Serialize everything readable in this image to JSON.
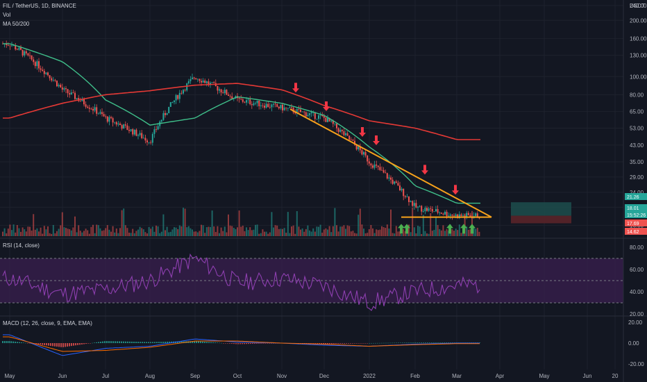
{
  "colors": {
    "background": "#131722",
    "grid": "#1e222d",
    "up": "#26a69a",
    "down": "#ef5350",
    "ma50": "#3fbf8a",
    "ma200": "#e53935",
    "trendline": "#f7a21b",
    "arrow_down": "#f23645",
    "arrow_up": "#4caf50",
    "rsi_line": "#8e3fb0",
    "rsi_band": "#3a1f4f",
    "macd_line": "#2962ff",
    "signal_line": "#ff6d00",
    "projection_up": "#1d4a4a",
    "projection_down": "#5a2329"
  },
  "header": {
    "symbol_title": "FIL / TetherUS, 1D, BINANCE",
    "volume_label": "Vol",
    "ma_label": "MA 50/200",
    "rsi_label": "RSI (14, close)",
    "macd_label": "MACD (12, 26, close, 9, EMA, EMA)"
  },
  "currency": "USDT",
  "chart_data": [
    {
      "type": "line",
      "panel": "price",
      "scale": "log",
      "ylim": [
        14,
        240
      ],
      "yticks": [
        240,
        200,
        160,
        130,
        100,
        80,
        65,
        53,
        43,
        35,
        29,
        24,
        20,
        16
      ],
      "xticks": [
        "May",
        "Jun",
        "Jul",
        "Aug",
        "Sep",
        "Oct",
        "Nov",
        "Dec",
        "2022",
        "Feb",
        "Mar",
        "Apr",
        "May",
        "Jun",
        "20"
      ],
      "price_tags": [
        {
          "value": "21.26",
          "color": "#26a69a"
        },
        {
          "value": "18.01",
          "color": "#26a69a"
        },
        {
          "value": "15:52:26",
          "color": "#26a69a"
        },
        {
          "value": "17.69",
          "color": "#ef5350"
        },
        {
          "value": "14.62",
          "color": "#ef5350"
        }
      ],
      "series": [
        {
          "name": "FIL / TetherUS",
          "x": [
            "May",
            "Jun",
            "Jul",
            "Aug",
            "Sep",
            "Oct",
            "Nov",
            "Dec",
            "2022",
            "Feb",
            "Mar"
          ],
          "y": [
            150,
            85,
            60,
            45,
            100,
            75,
            68,
            60,
            35,
            20,
            18
          ]
        },
        {
          "name": "MA 50",
          "x": [
            "May",
            "Jun",
            "Jul",
            "Aug",
            "Sep",
            "Oct",
            "Nov",
            "Dec",
            "2022",
            "Feb",
            "Mar"
          ],
          "y": [
            150,
            120,
            75,
            55,
            60,
            78,
            72,
            62,
            42,
            26,
            21
          ]
        },
        {
          "name": "MA 200",
          "x": [
            "May",
            "Jun",
            "Jul",
            "Aug",
            "Sep",
            "Oct",
            "Nov",
            "Dec",
            "2022",
            "Feb",
            "Mar"
          ],
          "y": [
            60,
            72,
            80,
            84,
            90,
            92,
            85,
            70,
            58,
            53,
            46
          ]
        }
      ]
    },
    {
      "type": "line",
      "panel": "rsi",
      "ylim": [
        20,
        85
      ],
      "yticks": [
        80,
        60,
        40,
        20
      ],
      "band": [
        30,
        70
      ],
      "midline": 50,
      "series": [
        {
          "name": "RSI (14, close)",
          "x": [
            "May",
            "Jun",
            "Jul",
            "Aug",
            "Sep",
            "Oct",
            "Nov",
            "Dec",
            "2022",
            "Feb",
            "Mar"
          ],
          "y": [
            52,
            38,
            42,
            50,
            70,
            48,
            52,
            45,
            30,
            40,
            46
          ]
        }
      ]
    },
    {
      "type": "line",
      "panel": "macd",
      "ylim": [
        -24,
        24
      ],
      "yticks": [
        20,
        0,
        -20
      ],
      "series": [
        {
          "name": "MACD",
          "x": [
            "May",
            "Jun",
            "Jul",
            "Aug",
            "Sep",
            "Oct",
            "Nov",
            "Dec",
            "2022",
            "Feb",
            "Mar"
          ],
          "y": [
            8,
            -12,
            -5,
            -3,
            4,
            1,
            0,
            -2,
            -3,
            -1,
            0
          ]
        },
        {
          "name": "Signal",
          "x": [
            "May",
            "Jun",
            "Jul",
            "Aug",
            "Sep",
            "Oct",
            "Nov",
            "Dec",
            "2022",
            "Feb",
            "Mar"
          ],
          "y": [
            6,
            -8,
            -7,
            -4,
            2,
            2,
            0,
            -1,
            -3,
            -1.5,
            -0.5
          ]
        }
      ]
    }
  ]
}
